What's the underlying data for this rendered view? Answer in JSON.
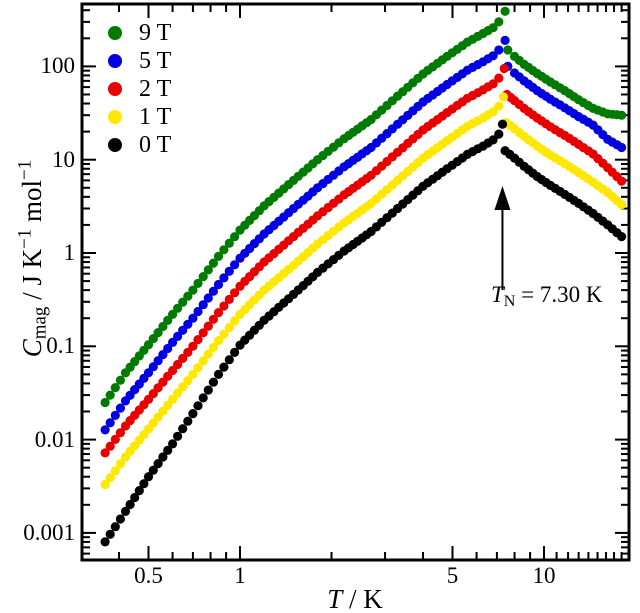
{
  "figure": {
    "background": "#ffffff",
    "frame_color": "#000000"
  },
  "axes": {
    "x": {
      "scale": "log",
      "range": [
        0.302,
        19.0
      ],
      "label_symbol": "T",
      "label_rest": " / K",
      "major_ticks": [
        {
          "v": 0.5,
          "label": "0.5"
        },
        {
          "v": 1,
          "label": "1"
        },
        {
          "v": 5,
          "label": "5"
        },
        {
          "v": 10,
          "label": "10"
        }
      ]
    },
    "y": {
      "scale": "log",
      "range": [
        0.00051,
        466
      ],
      "label_symbol": "C",
      "label_sub": "mag",
      "label_mid": " / J K",
      "label_sup1": "−1",
      "label_mid2": " mol",
      "label_sup2": "−1",
      "major_ticks": [
        {
          "v": 100,
          "label": "100"
        },
        {
          "v": 10,
          "label": "10"
        },
        {
          "v": 1,
          "label": "1"
        },
        {
          "v": 0.1,
          "label": "0.1"
        },
        {
          "v": 0.01,
          "label": "0.01"
        },
        {
          "v": 0.001,
          "label": "0.001"
        }
      ]
    }
  },
  "legend": {
    "items": [
      {
        "label": "9 T",
        "color": "#007a00"
      },
      {
        "label": "5 T",
        "color": "#0000e0"
      },
      {
        "label": "2 T",
        "color": "#e80000"
      },
      {
        "label": "1 T",
        "color": "#ffe800"
      },
      {
        "label": "0 T",
        "color": "#000000"
      }
    ]
  },
  "annotation": {
    "symbol": "T",
    "sub": "N",
    "rest": " = 7.30 K",
    "value_K": 7.3
  },
  "chart_data": {
    "type": "scatter",
    "title": "",
    "xlabel": "T / K",
    "ylabel": "C_mag / J K^-1 mol^-1",
    "xscale": "log",
    "yscale": "log",
    "xlim": [
      0.302,
      19.0
    ],
    "ylim": [
      0.00051,
      466
    ],
    "neel_temperature_K": 7.3,
    "series": [
      {
        "name": "9 T",
        "color": "#007a00",
        "points": [
          [
            0.36,
            0.025
          ],
          [
            0.42,
            0.052
          ],
          [
            0.5,
            0.104
          ],
          [
            0.6,
            0.22
          ],
          [
            0.7,
            0.4
          ],
          [
            0.85,
            0.92
          ],
          [
            1.0,
            1.76
          ],
          [
            1.2,
            3.2
          ],
          [
            1.5,
            6.0
          ],
          [
            1.8,
            10
          ],
          [
            2.2,
            16.8
          ],
          [
            2.7,
            27
          ],
          [
            3.3,
            48
          ],
          [
            4.0,
            83
          ],
          [
            4.8,
            128
          ],
          [
            5.6,
            182
          ],
          [
            6.3,
            225
          ],
          [
            6.8,
            260
          ],
          [
            7.1,
            300
          ],
          [
            7.45,
            390
          ],
          [
            7.6,
            150
          ],
          [
            8.0,
            128
          ],
          [
            8.6,
            105
          ],
          [
            9.5,
            84
          ],
          [
            10.5,
            68
          ],
          [
            11.7,
            55
          ],
          [
            13.0,
            44
          ],
          [
            14.5,
            35.5
          ],
          [
            16.2,
            31
          ],
          [
            18.0,
            30
          ]
        ]
      },
      {
        "name": "5 T",
        "color": "#0000e0",
        "points": [
          [
            0.36,
            0.0127
          ],
          [
            0.42,
            0.026
          ],
          [
            0.5,
            0.052
          ],
          [
            0.6,
            0.11
          ],
          [
            0.7,
            0.2
          ],
          [
            0.85,
            0.46
          ],
          [
            1.0,
            0.88
          ],
          [
            1.2,
            1.6
          ],
          [
            1.5,
            3.0
          ],
          [
            1.8,
            5.0
          ],
          [
            2.2,
            8.4
          ],
          [
            2.7,
            13.5
          ],
          [
            3.3,
            24
          ],
          [
            4.0,
            41.5
          ],
          [
            4.8,
            64
          ],
          [
            5.6,
            91
          ],
          [
            6.3,
            112
          ],
          [
            6.8,
            130
          ],
          [
            7.1,
            150
          ],
          [
            7.45,
            190
          ],
          [
            7.6,
            100
          ],
          [
            8.0,
            85
          ],
          [
            8.6,
            70
          ],
          [
            9.5,
            55
          ],
          [
            10.5,
            44.5
          ],
          [
            11.7,
            36
          ],
          [
            13.0,
            29
          ],
          [
            14.5,
            23.5
          ],
          [
            16.2,
            16.5
          ],
          [
            18.0,
            13.5
          ]
        ]
      },
      {
        "name": "2 T",
        "color": "#e80000",
        "points": [
          [
            0.36,
            0.0072
          ],
          [
            0.42,
            0.014
          ],
          [
            0.5,
            0.027
          ],
          [
            0.6,
            0.055
          ],
          [
            0.7,
            0.1
          ],
          [
            0.85,
            0.23
          ],
          [
            1.0,
            0.44
          ],
          [
            1.2,
            0.8
          ],
          [
            1.5,
            1.5
          ],
          [
            1.8,
            2.5
          ],
          [
            2.2,
            4.2
          ],
          [
            2.7,
            6.8
          ],
          [
            3.3,
            12
          ],
          [
            4.0,
            20.8
          ],
          [
            4.8,
            32
          ],
          [
            5.6,
            45.5
          ],
          [
            6.3,
            56
          ],
          [
            6.8,
            65
          ],
          [
            7.1,
            75
          ],
          [
            7.4,
            95
          ],
          [
            7.55,
            50
          ],
          [
            8.0,
            43
          ],
          [
            8.6,
            35.5
          ],
          [
            9.5,
            28
          ],
          [
            10.5,
            22.5
          ],
          [
            11.7,
            18.2
          ],
          [
            13.0,
            14.6
          ],
          [
            14.5,
            11.5
          ],
          [
            16.2,
            8.2
          ],
          [
            18.0,
            5.9
          ]
        ]
      },
      {
        "name": "1 T",
        "color": "#ffe800",
        "points": [
          [
            0.36,
            0.0033
          ],
          [
            0.42,
            0.0065
          ],
          [
            0.5,
            0.013
          ],
          [
            0.6,
            0.027
          ],
          [
            0.7,
            0.05
          ],
          [
            0.85,
            0.115
          ],
          [
            1.0,
            0.22
          ],
          [
            1.2,
            0.4
          ],
          [
            1.5,
            0.74
          ],
          [
            1.8,
            1.25
          ],
          [
            2.2,
            2.1
          ],
          [
            2.7,
            3.4
          ],
          [
            3.3,
            6.0
          ],
          [
            4.0,
            10.4
          ],
          [
            4.8,
            16
          ],
          [
            5.6,
            22.8
          ],
          [
            6.3,
            28
          ],
          [
            6.8,
            32.5
          ],
          [
            7.1,
            37.5
          ],
          [
            7.35,
            47
          ],
          [
            7.5,
            25
          ],
          [
            8.0,
            21.5
          ],
          [
            8.6,
            17.8
          ],
          [
            9.5,
            14
          ],
          [
            10.5,
            11.2
          ],
          [
            11.7,
            9.1
          ],
          [
            13.0,
            7.3
          ],
          [
            14.5,
            5.75
          ],
          [
            16.2,
            4.45
          ],
          [
            18.0,
            3.3
          ]
        ]
      },
      {
        "name": "0 T",
        "color": "#000000",
        "points": [
          [
            0.36,
            0.0008
          ],
          [
            0.42,
            0.0017
          ],
          [
            0.5,
            0.004
          ],
          [
            0.6,
            0.009
          ],
          [
            0.7,
            0.019
          ],
          [
            0.85,
            0.05
          ],
          [
            1.0,
            0.103
          ],
          [
            1.2,
            0.19
          ],
          [
            1.5,
            0.36
          ],
          [
            1.8,
            0.62
          ],
          [
            2.2,
            1.05
          ],
          [
            2.7,
            1.7
          ],
          [
            3.3,
            3.0
          ],
          [
            4.0,
            5.2
          ],
          [
            4.8,
            8.0
          ],
          [
            5.6,
            11.4
          ],
          [
            6.3,
            14.0
          ],
          [
            6.8,
            16.3
          ],
          [
            7.1,
            18.8
          ],
          [
            7.3,
            24
          ],
          [
            7.45,
            12.5
          ],
          [
            8.0,
            10.4
          ],
          [
            8.6,
            8.5
          ],
          [
            9.5,
            6.6
          ],
          [
            10.5,
            5.3
          ],
          [
            11.7,
            4.25
          ],
          [
            13.0,
            3.4
          ],
          [
            14.5,
            2.65
          ],
          [
            16.2,
            2.0
          ],
          [
            18.0,
            1.5
          ]
        ]
      }
    ]
  }
}
